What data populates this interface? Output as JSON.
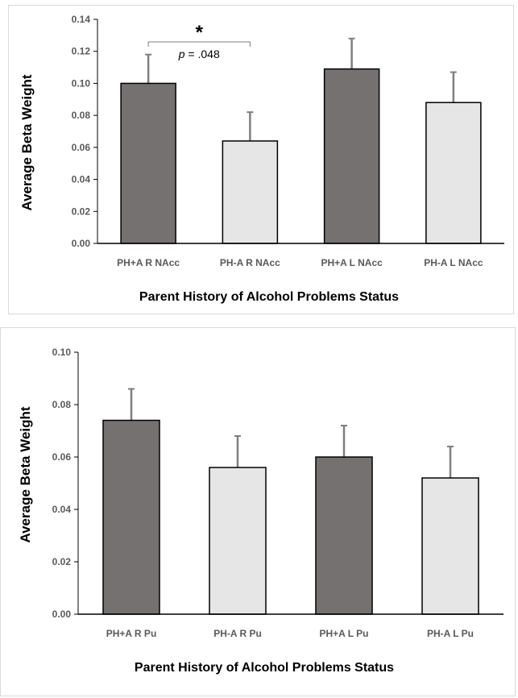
{
  "colors": {
    "dark_bar": "#767171",
    "light_bar": "#e7e6e6",
    "bar_stroke": "#000000",
    "error_bar": "#7f7f7f",
    "axis": "#000000",
    "tick_text": "#595959"
  },
  "chart_data": [
    {
      "type": "bar",
      "xlabel": "Parent History of Alcohol Problems Status",
      "ylabel": "Average Beta Weight",
      "ylim": [
        0,
        0.14
      ],
      "yticks": [
        "0.00",
        "0.02",
        "0.04",
        "0.06",
        "0.08",
        "0.10",
        "0.12",
        "0.14"
      ],
      "ytick_values": [
        0,
        0.02,
        0.04,
        0.06,
        0.08,
        0.1,
        0.12,
        0.14
      ],
      "categories": [
        "PH+A R NAcc",
        "PH-A R NAcc",
        "PH+A L NAcc",
        "PH-A L NAcc"
      ],
      "values": [
        0.1,
        0.064,
        0.109,
        0.088
      ],
      "errors": [
        0.018,
        0.018,
        0.019,
        0.019
      ],
      "bar_fill": [
        "dark",
        "light",
        "dark",
        "light"
      ],
      "grid": false,
      "annotation": {
        "star": "*",
        "p_label": "p",
        "p_value": " = .048",
        "between": [
          0,
          1
        ]
      }
    },
    {
      "type": "bar",
      "xlabel": "Parent History of Alcohol Problems Status",
      "ylabel": "Average Beta Weight",
      "ylim": [
        0,
        0.1
      ],
      "yticks": [
        "0.00",
        "0.02",
        "0.04",
        "0.06",
        "0.08",
        "0.10"
      ],
      "ytick_values": [
        0,
        0.02,
        0.04,
        0.06,
        0.08,
        0.1
      ],
      "categories": [
        "PH+A R Pu",
        "PH-A R Pu",
        "PH+A L Pu",
        "PH-A L Pu"
      ],
      "values": [
        0.074,
        0.056,
        0.06,
        0.052
      ],
      "errors": [
        0.012,
        0.012,
        0.012,
        0.012
      ],
      "bar_fill": [
        "dark",
        "light",
        "dark",
        "light"
      ],
      "grid": false
    }
  ]
}
